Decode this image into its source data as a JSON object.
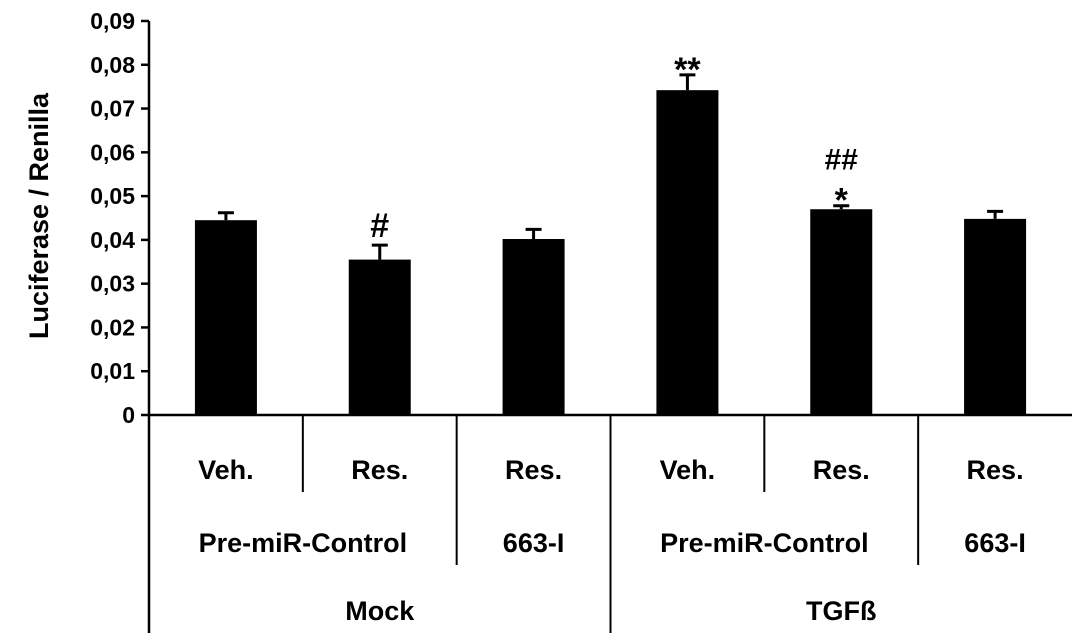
{
  "chart_data": {
    "type": "bar",
    "title": "",
    "ylabel": "Luciferase / Renilla",
    "ylim": [
      0,
      0.09
    ],
    "y_ticks": [
      0,
      0.01,
      0.02,
      0.03,
      0.04,
      0.05,
      0.06,
      0.07,
      0.08,
      0.09
    ],
    "y_tick_labels": [
      "0",
      "0,01",
      "0,02",
      "0,03",
      "0,04",
      "0,05",
      "0,06",
      "0,07",
      "0,08",
      "0,09"
    ],
    "grid": false,
    "legend": "none",
    "bar_color": "#000000",
    "categories": [
      "Veh.",
      "Res.",
      "Res.",
      "Veh.",
      "Res.",
      "Res."
    ],
    "values": [
      0.0445,
      0.0355,
      0.0402,
      0.0742,
      0.047,
      0.0448
    ],
    "errors": [
      0.0017,
      0.0033,
      0.0022,
      0.0035,
      0.0008,
      0.0017
    ],
    "annotations": [
      "",
      "#",
      "",
      "**",
      "*",
      ""
    ],
    "annotations_top": [
      "",
      "",
      "",
      "",
      "##",
      ""
    ],
    "subgroups": [
      {
        "label": "Pre-miR-Control",
        "span": [
          0,
          1
        ]
      },
      {
        "label": "663-I",
        "span": [
          2,
          2
        ]
      },
      {
        "label": "Pre-miR-Control",
        "span": [
          3,
          4
        ]
      },
      {
        "label": "663-I",
        "span": [
          5,
          5
        ]
      }
    ],
    "groups": [
      {
        "label": "Mock",
        "span": [
          0,
          2
        ]
      },
      {
        "label": "TGFß",
        "span": [
          3,
          5
        ]
      }
    ]
  }
}
